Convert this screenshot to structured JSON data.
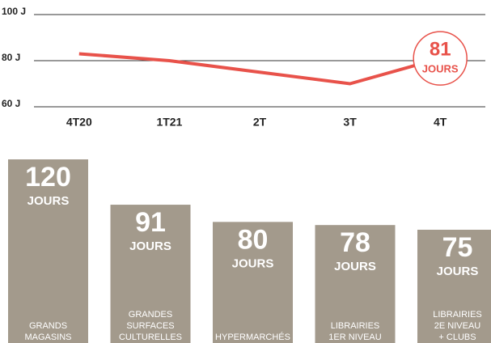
{
  "chart_data": [
    {
      "type": "line",
      "categories": [
        "4T20",
        "1T21",
        "2T",
        "3T",
        "4T"
      ],
      "series": [
        {
          "color": "#e8524a",
          "values": [
            83,
            80,
            75,
            70,
            81
          ]
        }
      ],
      "ylim": [
        60,
        100
      ],
      "yticks": [
        {
          "value": 60,
          "label": "60 J"
        },
        {
          "value": 80,
          "label": "80 J"
        },
        {
          "value": 100,
          "label": "100 J"
        }
      ],
      "grid": true,
      "annotation": {
        "value": "81",
        "unit": "JOURS"
      }
    },
    {
      "type": "bar",
      "categories": [
        [
          "GRANDS",
          "MAGASINS"
        ],
        [
          "GRANDES",
          "SURFACES",
          "CULTURELLES"
        ],
        [
          "HYPERMARCHÉS"
        ],
        [
          "LIBRAIRIES",
          "1ER NIVEAU"
        ],
        [
          "LIBRAIRIES",
          "2E NIVEAU",
          "+ CLUBS"
        ]
      ],
      "values": [
        120,
        91,
        80,
        78,
        75
      ],
      "unit": "JOURS",
      "color": "#a39a8c",
      "ylim": [
        0,
        120
      ]
    }
  ]
}
